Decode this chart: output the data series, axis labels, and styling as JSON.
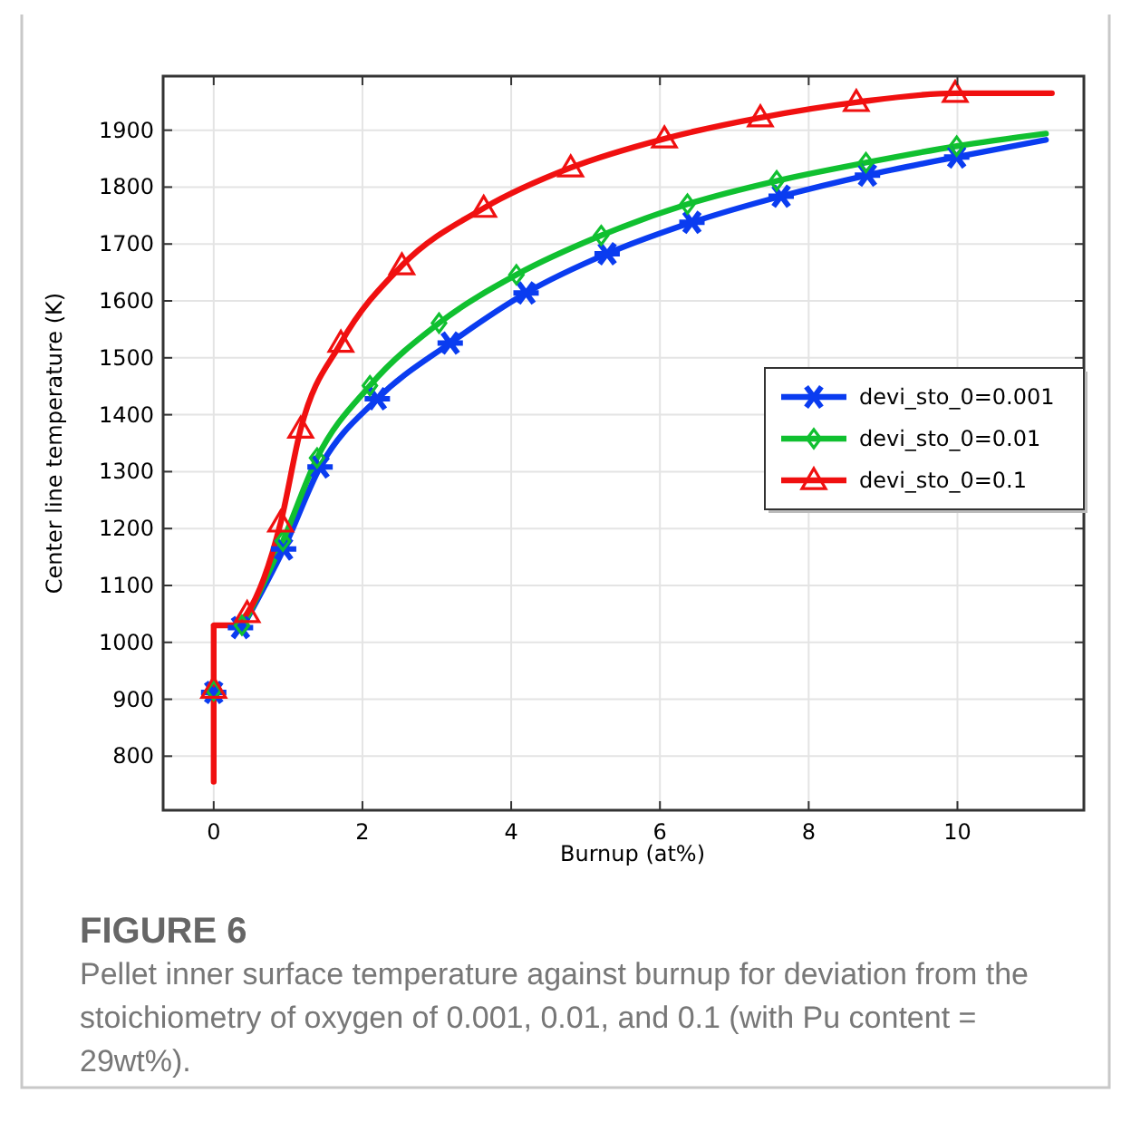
{
  "chart_data": {
    "type": "line",
    "title": "FIGURE 6",
    "annotations": [
      "Pellet inner surface temperature against burnup for deviation from the stoichiometry of oxygen of 0.001, 0.01, and 0.1 (with Pu content = 29wt%)."
    ],
    "xlabel": "Burnup (at%)",
    "ylabel": "Center line temperature  (K)",
    "xlim": [
      -0.68,
      11.7
    ],
    "ylim": [
      705,
      1995
    ],
    "xticks": [
      0,
      2,
      4,
      6,
      8,
      10
    ],
    "yticks": [
      800,
      900,
      1000,
      1100,
      1200,
      1300,
      1400,
      1500,
      1600,
      1700,
      1800,
      1900
    ],
    "grid": true,
    "legend": "right",
    "line_style": "solid",
    "series": [
      {
        "name": "devi_sto_0=0.001",
        "color": "#0a3cf0",
        "marker": "none",
        "x": [
          0.4,
          0.94,
          1.43,
          2.2,
          3.18,
          4.2,
          5.29,
          6.43,
          7.63,
          8.79,
          9.99,
          11.19
        ],
        "values": [
          1030,
          1164,
          1308,
          1428,
          1526,
          1614,
          1683,
          1738,
          1784,
          1821,
          1853,
          1883
        ]
      },
      {
        "name": "devi_sto_0=0.01",
        "color": "#10c030",
        "marker": "none",
        "x": [
          0.4,
          0.93,
          1.39,
          2.1,
          3.03,
          4.07,
          5.21,
          6.37,
          7.57,
          8.77,
          9.99,
          11.19
        ],
        "values": [
          1030,
          1178,
          1324,
          1451,
          1561,
          1646,
          1715,
          1770,
          1811,
          1843,
          1872,
          1894
        ]
      },
      {
        "name": "devi_sto_0=0.1",
        "color": "#f01010",
        "marker": "none",
        "x": [
          0,
          0,
          0.3,
          0.45,
          0.9,
          1.17,
          1.71,
          2.53,
          3.63,
          4.8,
          6.06,
          7.35,
          8.64,
          9.97,
          11.27
        ],
        "values": [
          755,
          1030,
          1030,
          1051,
          1210,
          1375,
          1526,
          1662,
          1763,
          1834,
          1885,
          1922,
          1949,
          1965,
          1965
        ]
      },
      {
        "type": "scatter",
        "color": "#0a3cf0",
        "marker": "cross",
        "x": [
          0,
          0.36,
          0.94,
          1.43,
          2.2,
          3.18,
          4.2,
          5.29,
          6.43,
          7.63,
          8.79,
          9.99
        ],
        "values": [
          912,
          1026,
          1164,
          1308,
          1428,
          1526,
          1614,
          1683,
          1738,
          1784,
          1821,
          1853
        ]
      },
      {
        "type": "scatter",
        "color": "#10c030",
        "marker": "diamond",
        "x": [
          0,
          0.38,
          0.93,
          1.39,
          2.1,
          3.03,
          4.07,
          5.21,
          6.37,
          7.57,
          8.77,
          9.99
        ],
        "values": [
          915,
          1030,
          1178,
          1324,
          1451,
          1561,
          1646,
          1715,
          1770,
          1811,
          1843,
          1872
        ]
      },
      {
        "type": "scatter",
        "color": "#f01010",
        "marker": "triangle",
        "x": [
          0,
          0.45,
          0.9,
          1.17,
          1.71,
          2.53,
          3.63,
          4.8,
          6.06,
          7.35,
          8.64,
          9.97
        ],
        "values": [
          918,
          1051,
          1210,
          1375,
          1526,
          1662,
          1763,
          1834,
          1885,
          1922,
          1949,
          1965
        ]
      }
    ]
  }
}
